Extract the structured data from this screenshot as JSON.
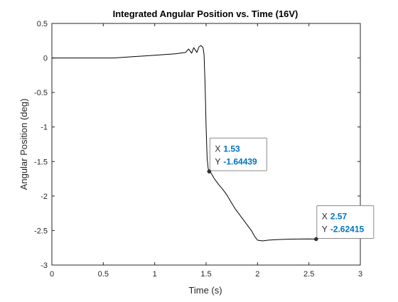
{
  "chart_data": {
    "type": "line",
    "title": "Integrated Angular Position vs. Time (16V)",
    "xlabel": "Time (s)",
    "ylabel": "Angular Position (deg)",
    "xlim": [
      0,
      3
    ],
    "ylim": [
      -3,
      0.5
    ],
    "xticks": [
      0,
      0.5,
      1,
      1.5,
      2,
      2.5,
      3
    ],
    "xtick_labels": [
      "0",
      "0.5",
      "1",
      "1.5",
      "2",
      "2.5",
      "3"
    ],
    "yticks": [
      0.5,
      0,
      -0.5,
      -1,
      -1.5,
      -2,
      -2.5,
      -3
    ],
    "ytick_labels": [
      "0.5",
      "0",
      "-0.5",
      "-1",
      "-1.5",
      "-2",
      "-2.5",
      "-3"
    ],
    "grid": false,
    "line_color": "#000000",
    "accent_color": "#0072bd",
    "series": [
      {
        "x": [
          0,
          0.3,
          0.6,
          0.7,
          0.8,
          0.9,
          1.0,
          1.1,
          1.2,
          1.25,
          1.3,
          1.33,
          1.36,
          1.38,
          1.41,
          1.43,
          1.45,
          1.47,
          1.48,
          1.49,
          1.5,
          1.51,
          1.52,
          1.53,
          1.55,
          1.58,
          1.62,
          1.66,
          1.7,
          1.74,
          1.78,
          1.82,
          1.86,
          1.9,
          1.94,
          1.97,
          2.0,
          2.05,
          2.1,
          2.2,
          2.3,
          2.4,
          2.5,
          2.57
        ],
        "y": [
          0.0,
          0.0,
          0.0,
          0.01,
          0.02,
          0.03,
          0.04,
          0.05,
          0.06,
          0.07,
          0.08,
          0.13,
          0.07,
          0.15,
          0.08,
          0.16,
          0.18,
          0.15,
          0.05,
          -0.4,
          -1.0,
          -1.45,
          -1.6,
          -1.64439,
          -1.67,
          -1.75,
          -1.83,
          -1.9,
          -1.98,
          -2.08,
          -2.18,
          -2.26,
          -2.34,
          -2.42,
          -2.5,
          -2.58,
          -2.64,
          -2.65,
          -2.64,
          -2.63,
          -2.625,
          -2.623,
          -2.622,
          -2.62415
        ]
      }
    ],
    "datatips": [
      {
        "x_label": "X",
        "x_value": "1.53",
        "y_label": "Y",
        "y_value": "-1.64439",
        "x": 1.53,
        "y": -1.64439
      },
      {
        "x_label": "X",
        "x_value": "2.57",
        "y_label": "Y",
        "y_value": "-2.62415",
        "x": 2.57,
        "y": -2.62415
      }
    ]
  }
}
